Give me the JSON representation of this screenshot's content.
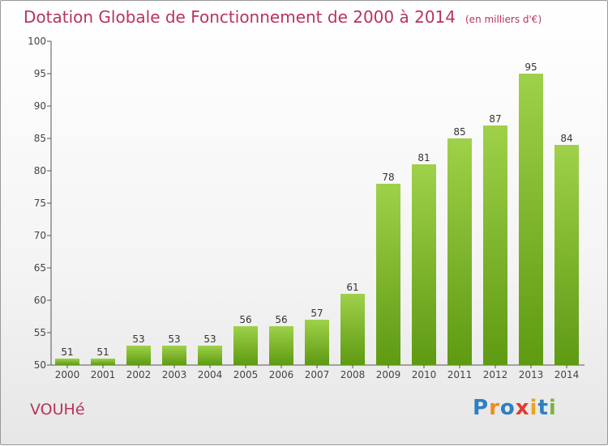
{
  "title": {
    "main": "Dotation Globale de Fonctionnement de 2000 à 2014",
    "unit": "(en milliers d'€)"
  },
  "commune": "VOUHé",
  "logo": {
    "text": "Proxiti",
    "letters": [
      {
        "char": "P",
        "color": "#2f7fc1"
      },
      {
        "char": "r",
        "color": "#f08a1c"
      },
      {
        "char": "o",
        "color": "#2f7fc1"
      },
      {
        "char": "x",
        "color": "#e23a2c"
      },
      {
        "char": "i",
        "color": "#f0a21c"
      },
      {
        "char": "t",
        "color": "#2f7fc1"
      },
      {
        "char": "i",
        "color": "#7cb342"
      }
    ]
  },
  "colors": {
    "bar_light": "#9fd14a",
    "bar_dark": "#5e9a12",
    "axis": "#555555",
    "grid_tick": "#444444",
    "title": "#b8345a"
  },
  "chart_data": {
    "type": "bar",
    "title": "Dotation Globale de Fonctionnement de 2000 à 2014",
    "subtitle": "(en milliers d'€)",
    "xlabel": "",
    "ylabel": "",
    "categories": [
      "2000",
      "2001",
      "2002",
      "2003",
      "2004",
      "2005",
      "2006",
      "2007",
      "2008",
      "2009",
      "2010",
      "2011",
      "2012",
      "2013",
      "2014"
    ],
    "values": [
      51,
      51,
      53,
      53,
      53,
      56,
      56,
      57,
      61,
      78,
      81,
      85,
      87,
      95,
      84
    ],
    "ylim": [
      50,
      100
    ],
    "yticks": [
      50,
      55,
      60,
      65,
      70,
      75,
      80,
      85,
      90,
      95,
      100
    ],
    "grid": false,
    "data_labels": true
  }
}
